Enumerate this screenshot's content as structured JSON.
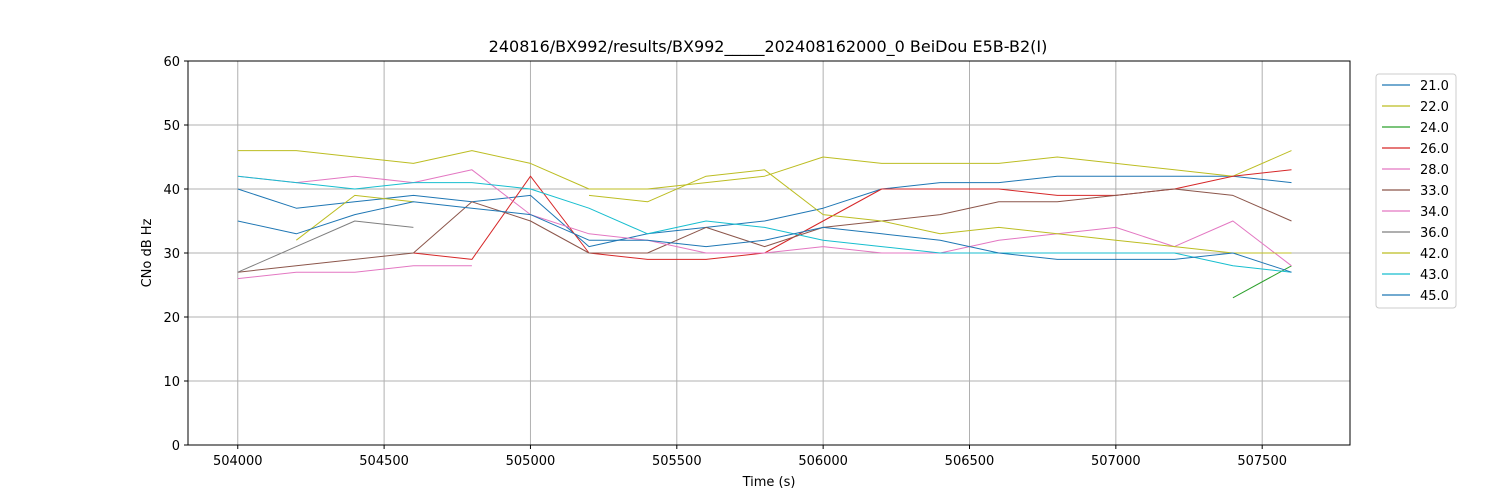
{
  "chart_data": {
    "type": "line",
    "title": "240816/BX992/results/BX992_____202408162000_0 BeiDou E5B-B2(I)",
    "xlabel": "Time (s)",
    "ylabel": "CNo dB Hz",
    "xlim": [
      503830,
      507800
    ],
    "ylim": [
      0,
      60
    ],
    "xticks": [
      504000,
      504500,
      505000,
      505500,
      506000,
      506500,
      507000,
      507500
    ],
    "yticks": [
      0,
      10,
      20,
      30,
      40,
      50,
      60
    ],
    "grid": true,
    "legend": "right-outside-top",
    "x": [
      504000,
      504200,
      504400,
      504600,
      504800,
      505000,
      505200,
      505400,
      505600,
      505800,
      506000,
      506200,
      506400,
      506600,
      506800,
      507000,
      507200,
      507400,
      507600
    ],
    "series": [
      {
        "name": "21.0",
        "color": "#1f77b4",
        "values": [
          40,
          37,
          38,
          39,
          38,
          39,
          31,
          33,
          34,
          35,
          37,
          40,
          41,
          41,
          42,
          42,
          42,
          42,
          41
        ]
      },
      {
        "name": "22.0",
        "color": "#bcbd22",
        "values": [
          46,
          46,
          45,
          44,
          46,
          44,
          40,
          40,
          41,
          42,
          45,
          44,
          44,
          44,
          45,
          44,
          43,
          42,
          46
        ]
      },
      {
        "name": "24.0",
        "color": "#2ca02c",
        "values": [
          null,
          null,
          null,
          null,
          null,
          null,
          null,
          null,
          null,
          null,
          null,
          null,
          null,
          null,
          null,
          null,
          null,
          23,
          28
        ]
      },
      {
        "name": "26.0",
        "color": "#d62728",
        "values": [
          null,
          null,
          null,
          30,
          29,
          42,
          30,
          29,
          29,
          30,
          35,
          40,
          40,
          40,
          39,
          39,
          40,
          42,
          43
        ]
      },
      {
        "name": "28.0",
        "color": "#e377c2",
        "values": [
          26,
          27,
          27,
          28,
          28,
          null,
          null,
          null,
          null,
          null,
          null,
          null,
          null,
          null,
          null,
          null,
          null,
          null,
          null
        ]
      },
      {
        "name": "33.0",
        "color": "#8c564b",
        "values": [
          27,
          28,
          29,
          30,
          38,
          35,
          30,
          30,
          34,
          31,
          34,
          35,
          36,
          38,
          38,
          39,
          40,
          39,
          35
        ]
      },
      {
        "name": "34.0",
        "color": "#e377c2",
        "values": [
          42,
          41,
          42,
          41,
          43,
          36,
          33,
          32,
          30,
          30,
          31,
          30,
          30,
          32,
          33,
          34,
          31,
          35,
          28
        ]
      },
      {
        "name": "36.0",
        "color": "#7f7f7f",
        "values": [
          27,
          31,
          35,
          34,
          null,
          null,
          null,
          null,
          null,
          null,
          null,
          null,
          null,
          null,
          null,
          null,
          null,
          null,
          null
        ]
      },
      {
        "name": "42.0",
        "color": "#bcbd22",
        "values": [
          null,
          32,
          39,
          38,
          null,
          null,
          39,
          38,
          42,
          43,
          36,
          35,
          33,
          34,
          33,
          32,
          31,
          30,
          30
        ]
      },
      {
        "name": "43.0",
        "color": "#17becf",
        "values": [
          42,
          41,
          40,
          41,
          41,
          40,
          37,
          33,
          35,
          34,
          32,
          31,
          30,
          30,
          30,
          30,
          30,
          28,
          27
        ]
      },
      {
        "name": "45.0",
        "color": "#1f77b4",
        "values": [
          35,
          33,
          36,
          38,
          37,
          36,
          32,
          32,
          31,
          32,
          34,
          33,
          32,
          30,
          29,
          29,
          29,
          30,
          27
        ]
      }
    ]
  }
}
